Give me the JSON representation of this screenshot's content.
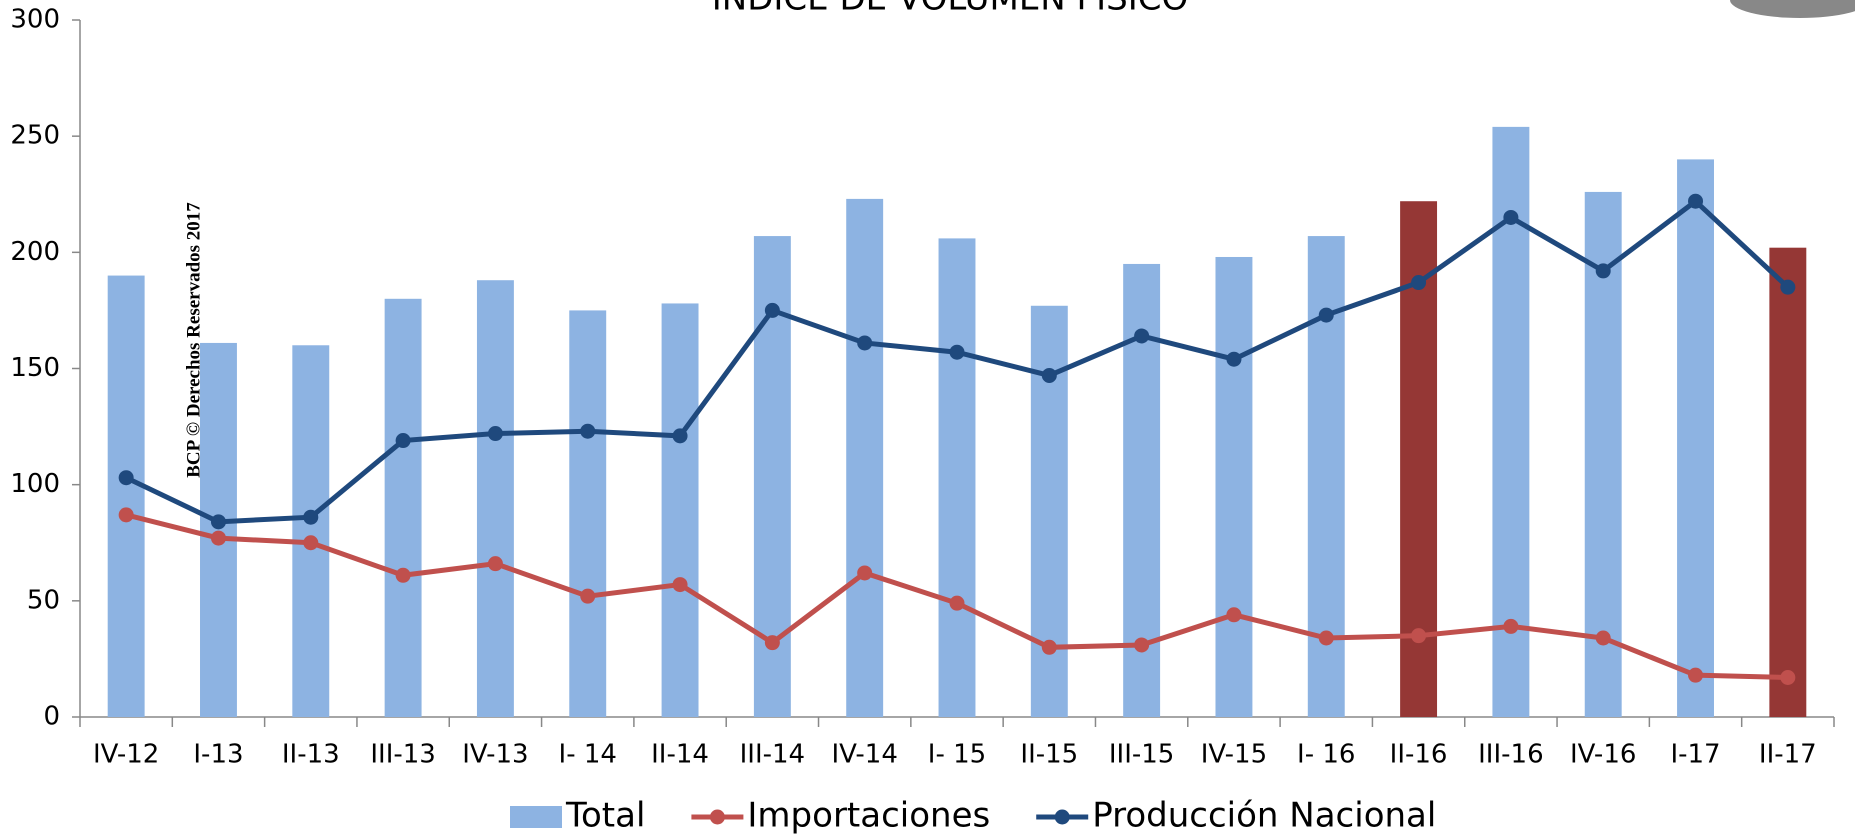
{
  "chart_data": {
    "type": "combo",
    "title": "ÍNDICE DE VOLUMEN FÍSICO",
    "watermark": "BCP © Derechos Reservados 2017",
    "categories": [
      "IV-12",
      "I-13",
      "II-13",
      "III-13",
      "IV-13",
      "I- 14",
      "II-14",
      "III-14",
      "IV-14",
      "I- 15",
      "II-15",
      "III-15",
      "IV-15",
      "I- 16",
      "II-16",
      "III-16",
      "IV-16",
      "I-17",
      "II-17"
    ],
    "series": [
      {
        "name": "Total",
        "type": "bar",
        "color": "#8db3e2",
        "colors": [
          "#8db3e2",
          "#8db3e2",
          "#8db3e2",
          "#8db3e2",
          "#8db3e2",
          "#8db3e2",
          "#8db3e2",
          "#8db3e2",
          "#8db3e2",
          "#8db3e2",
          "#8db3e2",
          "#8db3e2",
          "#8db3e2",
          "#8db3e2",
          "#953735",
          "#8db3e2",
          "#8db3e2",
          "#8db3e2",
          "#953735"
        ],
        "values": [
          190,
          161,
          160,
          180,
          188,
          175,
          178,
          207,
          223,
          206,
          177,
          195,
          198,
          207,
          222,
          254,
          226,
          240,
          202
        ]
      },
      {
        "name": "Importaciones",
        "type": "line",
        "color": "#c0504d",
        "values": [
          87,
          77,
          75,
          61,
          66,
          52,
          57,
          32,
          62,
          49,
          30,
          31,
          44,
          34,
          35,
          39,
          34,
          18,
          17
        ]
      },
      {
        "name": "Producción Nacional",
        "type": "line",
        "color": "#1f497d",
        "values": [
          103,
          84,
          86,
          119,
          122,
          123,
          121,
          175,
          161,
          157,
          147,
          164,
          154,
          173,
          187,
          215,
          192,
          222,
          185
        ]
      }
    ],
    "ylim": [
      0,
      300
    ],
    "yticks": [
      0,
      50,
      100,
      150,
      200,
      250,
      300
    ],
    "grid": false,
    "legend": "bottom"
  }
}
